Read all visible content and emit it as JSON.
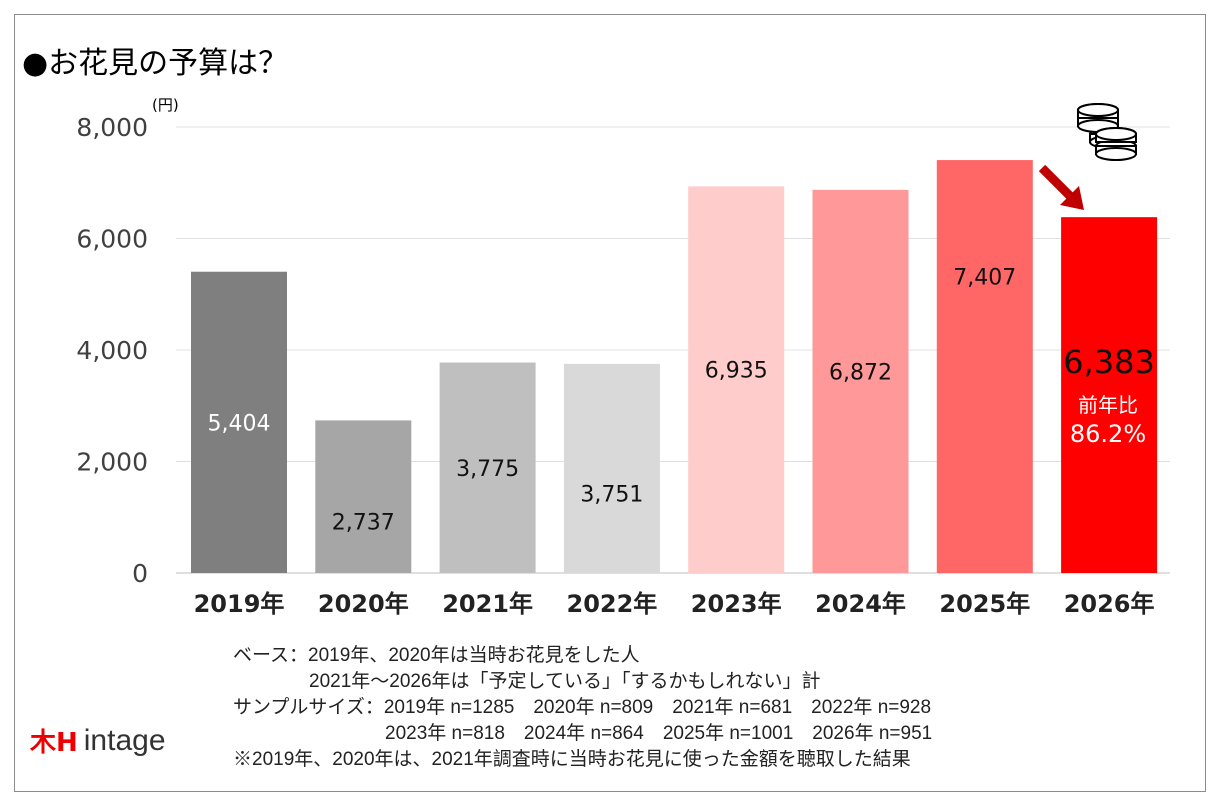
{
  "chart_data": {
    "type": "bar",
    "title": "●お花見の予算は？",
    "unit": "(円)",
    "categories": [
      "2019年",
      "2020年",
      "2021年",
      "2022年",
      "2023年",
      "2024年",
      "2025年",
      "2026年"
    ],
    "values": [
      5404,
      2737,
      3775,
      3751,
      6935,
      6872,
      7407,
      6383
    ],
    "value_labels": [
      "5,404",
      "2,737",
      "3,775",
      "3,751",
      "6,935",
      "6,872",
      "7,407",
      "6,383"
    ],
    "colors": [
      "#7f7f7f",
      "#a6a6a6",
      "#bfbfbf",
      "#d9d9d9",
      "#ffcccc",
      "#ff9999",
      "#ff6666",
      "#ff0000"
    ],
    "ylim": [
      0,
      8000
    ],
    "yticks": [
      0,
      2000,
      4000,
      6000,
      8000
    ],
    "ytick_labels": [
      "0",
      "2,000",
      "4,000",
      "6,000",
      "8,000"
    ],
    "grid": true,
    "annotation": {
      "line1": "前年比",
      "line2": "86.2%"
    },
    "icons": [
      "coins-icon",
      "down-right-arrow-icon"
    ]
  },
  "notes": [
    "ベース：2019年、2020年は当時お花見をした人",
    "　　　　2021年～2026年は「予定している」「するかもしれない」計",
    "サンプルサイズ：2019年 n=1285　2020年 n=809　2021年 n=681　2022年 n=928",
    "　　　　　　　　2023年 n=818　2024年 n=864　2025年 n=1001　2026年 n=951",
    "※2019年、2020年は、2021年調査時に当時お花見に使った金額を聴取した結果"
  ],
  "logo": "intage"
}
